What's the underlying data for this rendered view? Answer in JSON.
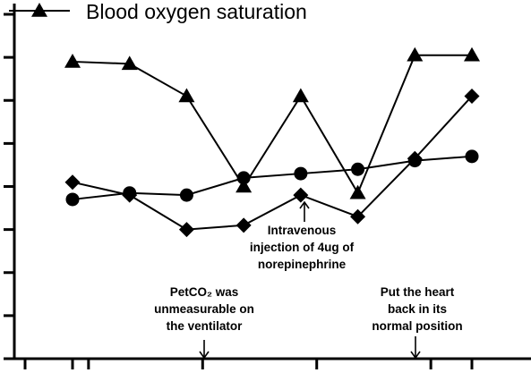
{
  "chart_data": {
    "type": "line",
    "title": "",
    "xlabel": "",
    "ylabel": "",
    "x": [
      1,
      2,
      3,
      4,
      5,
      6,
      7,
      8
    ],
    "xlim": [
      0.5,
      8.5
    ],
    "ylim": [
      0,
      8
    ],
    "yticks": [
      0,
      1,
      2,
      3,
      4,
      5,
      6,
      7,
      8
    ],
    "grid": false,
    "legend": {
      "placement": "top-left",
      "entries": [
        "Blood oxygen saturation"
      ]
    },
    "series": [
      {
        "name": "Blood oxygen saturation",
        "marker": "triangle",
        "values": [
          6.9,
          6.85,
          6.1,
          4.0,
          6.1,
          3.85,
          7.05,
          7.05
        ]
      },
      {
        "name": "",
        "marker": "diamond",
        "values": [
          4.1,
          3.8,
          3.0,
          3.1,
          3.8,
          3.3,
          4.65,
          6.1
        ]
      },
      {
        "name": "",
        "marker": "circle",
        "values": [
          3.7,
          3.85,
          3.8,
          4.2,
          4.3,
          4.4,
          4.6,
          4.7
        ]
      }
    ],
    "annotations": [
      {
        "x": 5,
        "y": 3.8,
        "lines": [
          "Intravenous",
          "injection of 4ug of",
          "norepinephrine"
        ]
      },
      {
        "x": 4,
        "y": 0,
        "lines": [
          "PetCO₂ was",
          "unmeasurable on",
          "the ventilator"
        ]
      },
      {
        "x": 7,
        "y": 0,
        "lines": [
          "Put the heart",
          "back in its",
          "normal position"
        ]
      }
    ],
    "colors": {
      "line": "#000000",
      "marker": "#000000",
      "axis": "#000000"
    }
  }
}
